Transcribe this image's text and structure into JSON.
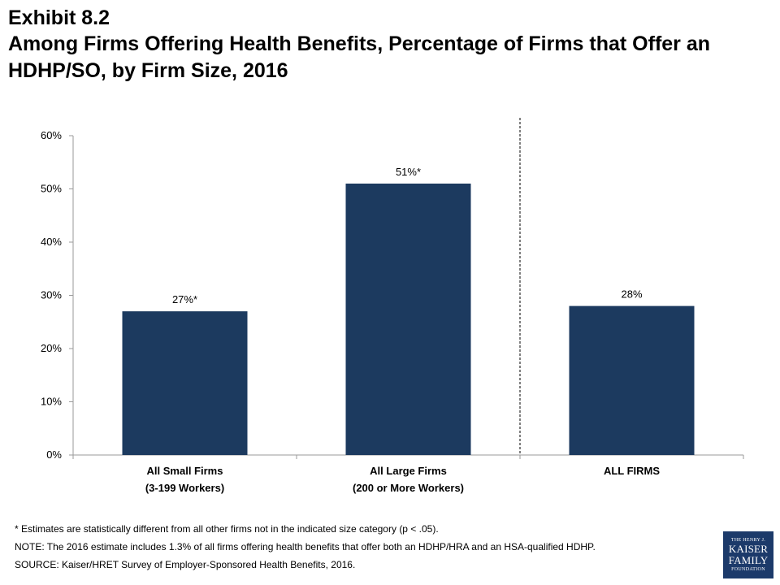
{
  "header": {
    "exhibit": "Exhibit 8.2",
    "title": "Among Firms Offering Health Benefits, Percentage of Firms that Offer an HDHP/SO, by Firm Size, 2016"
  },
  "chart_data": {
    "type": "bar",
    "categories": [
      [
        "All Small Firms",
        "(3-199 Workers)"
      ],
      [
        "All Large Firms",
        "(200 or More Workers)"
      ],
      [
        "ALL FIRMS"
      ]
    ],
    "values": [
      27,
      51,
      28
    ],
    "data_labels": [
      "27%*",
      "51%*",
      "28%"
    ],
    "ylim": [
      0,
      60
    ],
    "yticks": [
      "0%",
      "10%",
      "20%",
      "30%",
      "40%",
      "50%",
      "60%"
    ],
    "ytick_values": [
      0,
      10,
      20,
      30,
      40,
      50,
      60
    ],
    "bar_color": "#1c3a5f",
    "grid": false,
    "divider_after_category": 1
  },
  "footnotes": {
    "significance": "* Estimates are statistically different from all other firms not in the indicated size category  (p < .05).",
    "note": "NOTE:  The 2016 estimate includes 1.3% of all firms offering health benefits that offer both an HDHP/HRA and an HSA-qualified HDHP.",
    "source": "SOURCE:  Kaiser/HRET Survey of Employer-Sponsored Health Benefits, 2016."
  },
  "logo": {
    "line1": "THE HENRY J.",
    "line2": "KAISER",
    "line3": "FAMILY",
    "line4": "FOUNDATION",
    "color": "#1c3a6a"
  }
}
